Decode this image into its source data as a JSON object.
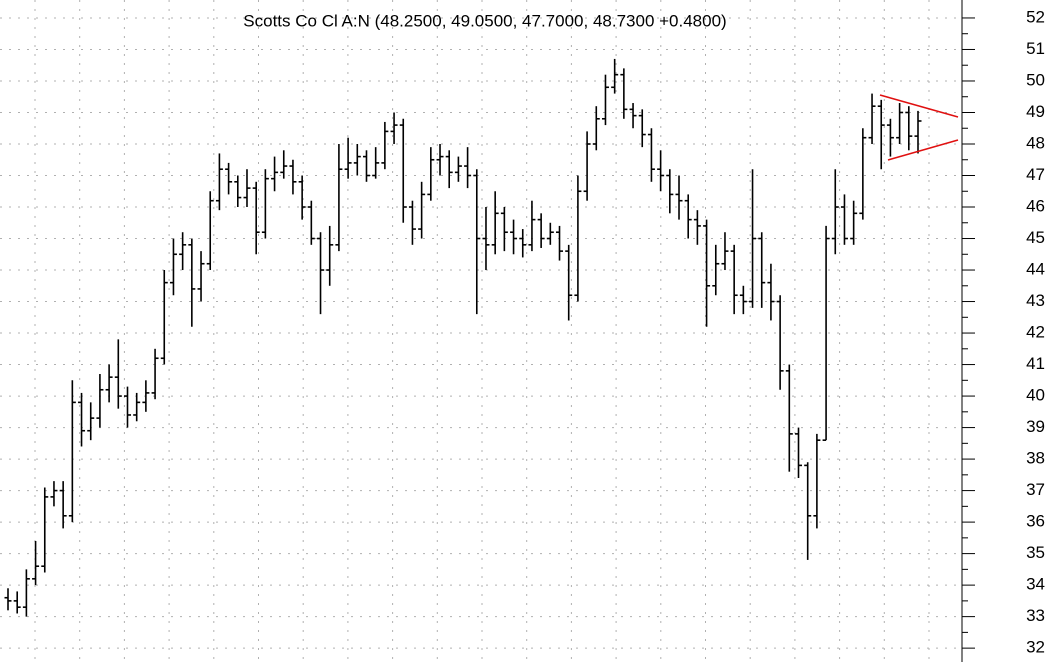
{
  "chart_data": {
    "type": "ohlc",
    "title": "Scotts Co Cl A:N (48.2500, 49.0500, 47.7000, 48.7300 +0.4800)",
    "color": "#000000",
    "trendline_color": "#e01010",
    "ylim": [
      31.56,
      52.57
    ],
    "yticks": [
      32,
      33,
      34,
      35,
      36,
      37,
      38,
      39,
      40,
      41,
      42,
      43,
      44,
      45,
      46,
      47,
      48,
      49,
      50,
      51,
      52
    ],
    "grid": true,
    "open": [
      33.6,
      33.5,
      33.3,
      34.2,
      34.6,
      36.8,
      37.0,
      36.2,
      39.8,
      38.9,
      39.3,
      40.2,
      40.6,
      40.0,
      39.4,
      39.8,
      40.1,
      41.2,
      43.6,
      44.5,
      44.8,
      43.4,
      44.2,
      46.2,
      47.2,
      46.8,
      46.3,
      46.6,
      45.2,
      46.9,
      47.1,
      47.3,
      46.8,
      46.0,
      45.0,
      44.0,
      44.8,
      47.2,
      47.4,
      47.6,
      47.0,
      47.4,
      48.4,
      48.6,
      46.0,
      45.3,
      46.4,
      47.5,
      47.6,
      47.1,
      47.3,
      47.0,
      45.0,
      44.8,
      45.8,
      45.2,
      45.0,
      44.8,
      45.6,
      45.0,
      45.2,
      44.6,
      43.2,
      46.5,
      48.0,
      48.8,
      49.8,
      50.2,
      49.1,
      48.9,
      48.3,
      47.2,
      47.0,
      46.4,
      46.2,
      45.6,
      45.4,
      43.5,
      44.2,
      44.6,
      43.2,
      43.0,
      45.0,
      43.6,
      43.0,
      40.8,
      38.8,
      37.8,
      36.2,
      38.6,
      45.0,
      46.0,
      45.0,
      45.8,
      48.2,
      49.2,
      48.6,
      48.2,
      49.0,
      48.25
    ],
    "high": [
      33.9,
      33.8,
      34.5,
      35.4,
      37.1,
      37.3,
      37.3,
      40.5,
      40.1,
      39.8,
      40.7,
      41.0,
      41.8,
      40.3,
      40.1,
      40.5,
      41.5,
      44.0,
      45.0,
      45.2,
      45.0,
      44.6,
      46.5,
      47.7,
      47.4,
      47.0,
      47.2,
      46.8,
      47.2,
      47.6,
      47.8,
      47.5,
      47.0,
      46.2,
      45.2,
      45.4,
      48.0,
      48.2,
      48.0,
      47.8,
      47.9,
      48.7,
      49.0,
      48.8,
      46.2,
      46.8,
      47.9,
      48.0,
      47.8,
      47.6,
      47.9,
      47.2,
      46.0,
      46.5,
      46.0,
      45.6,
      45.3,
      46.2,
      45.8,
      45.5,
      45.4,
      44.8,
      47.0,
      48.4,
      49.2,
      50.2,
      50.7,
      50.4,
      49.3,
      49.1,
      48.5,
      47.8,
      47.2,
      47.0,
      46.4,
      45.9,
      45.6,
      44.8,
      45.2,
      44.8,
      43.5,
      47.2,
      45.2,
      44.2,
      43.2,
      41.0,
      39.0,
      37.9,
      38.8,
      45.4,
      47.2,
      46.4,
      46.2,
      48.5,
      49.6,
      49.4,
      48.8,
      49.3,
      49.2,
      49.05
    ],
    "low": [
      33.2,
      33.1,
      33.0,
      34.0,
      34.4,
      36.5,
      35.8,
      36.0,
      38.4,
      38.6,
      39.0,
      39.8,
      39.6,
      39.0,
      39.2,
      39.5,
      39.9,
      41.0,
      43.2,
      44.0,
      42.2,
      43.0,
      44.0,
      45.9,
      46.4,
      46.0,
      46.0,
      44.5,
      45.0,
      46.5,
      46.9,
      46.4,
      45.6,
      44.8,
      42.6,
      43.5,
      44.6,
      46.9,
      47.0,
      46.8,
      46.9,
      47.2,
      48.0,
      45.5,
      44.8,
      45.0,
      46.2,
      47.0,
      46.6,
      46.8,
      46.6,
      42.6,
      44.0,
      44.5,
      44.6,
      44.5,
      44.4,
      44.6,
      44.7,
      44.8,
      44.3,
      42.4,
      43.0,
      46.2,
      47.8,
      48.6,
      49.6,
      48.8,
      48.5,
      47.9,
      46.8,
      46.5,
      45.8,
      45.6,
      45.0,
      44.8,
      42.2,
      43.2,
      44.0,
      42.6,
      42.6,
      42.8,
      42.8,
      42.4,
      40.2,
      37.6,
      37.4,
      34.8,
      35.8,
      38.6,
      44.5,
      44.8,
      44.8,
      45.6,
      48.0,
      47.2,
      47.6,
      48.0,
      47.8,
      47.7
    ],
    "close": [
      33.5,
      33.3,
      34.2,
      34.6,
      36.8,
      37.0,
      36.2,
      39.8,
      38.9,
      39.3,
      40.2,
      40.6,
      40.0,
      39.4,
      39.8,
      40.1,
      41.2,
      43.6,
      44.5,
      44.8,
      43.4,
      44.2,
      46.2,
      47.2,
      46.8,
      46.3,
      46.6,
      45.2,
      46.9,
      47.1,
      47.3,
      46.8,
      46.0,
      45.0,
      44.0,
      44.8,
      47.2,
      47.4,
      47.6,
      47.0,
      47.4,
      48.4,
      48.6,
      46.0,
      45.3,
      46.4,
      47.5,
      47.6,
      47.1,
      47.3,
      47.0,
      45.0,
      44.8,
      45.8,
      45.2,
      45.0,
      44.8,
      45.6,
      45.0,
      45.2,
      44.6,
      43.2,
      46.5,
      48.0,
      48.8,
      49.8,
      50.2,
      49.1,
      48.9,
      48.3,
      47.2,
      47.0,
      46.4,
      46.2,
      45.6,
      45.4,
      43.5,
      44.2,
      44.6,
      43.2,
      43.0,
      45.0,
      43.6,
      43.0,
      40.8,
      38.8,
      37.8,
      36.2,
      38.6,
      45.0,
      46.0,
      45.0,
      45.8,
      48.2,
      49.2,
      48.6,
      48.2,
      49.0,
      48.25,
      48.73
    ]
  }
}
